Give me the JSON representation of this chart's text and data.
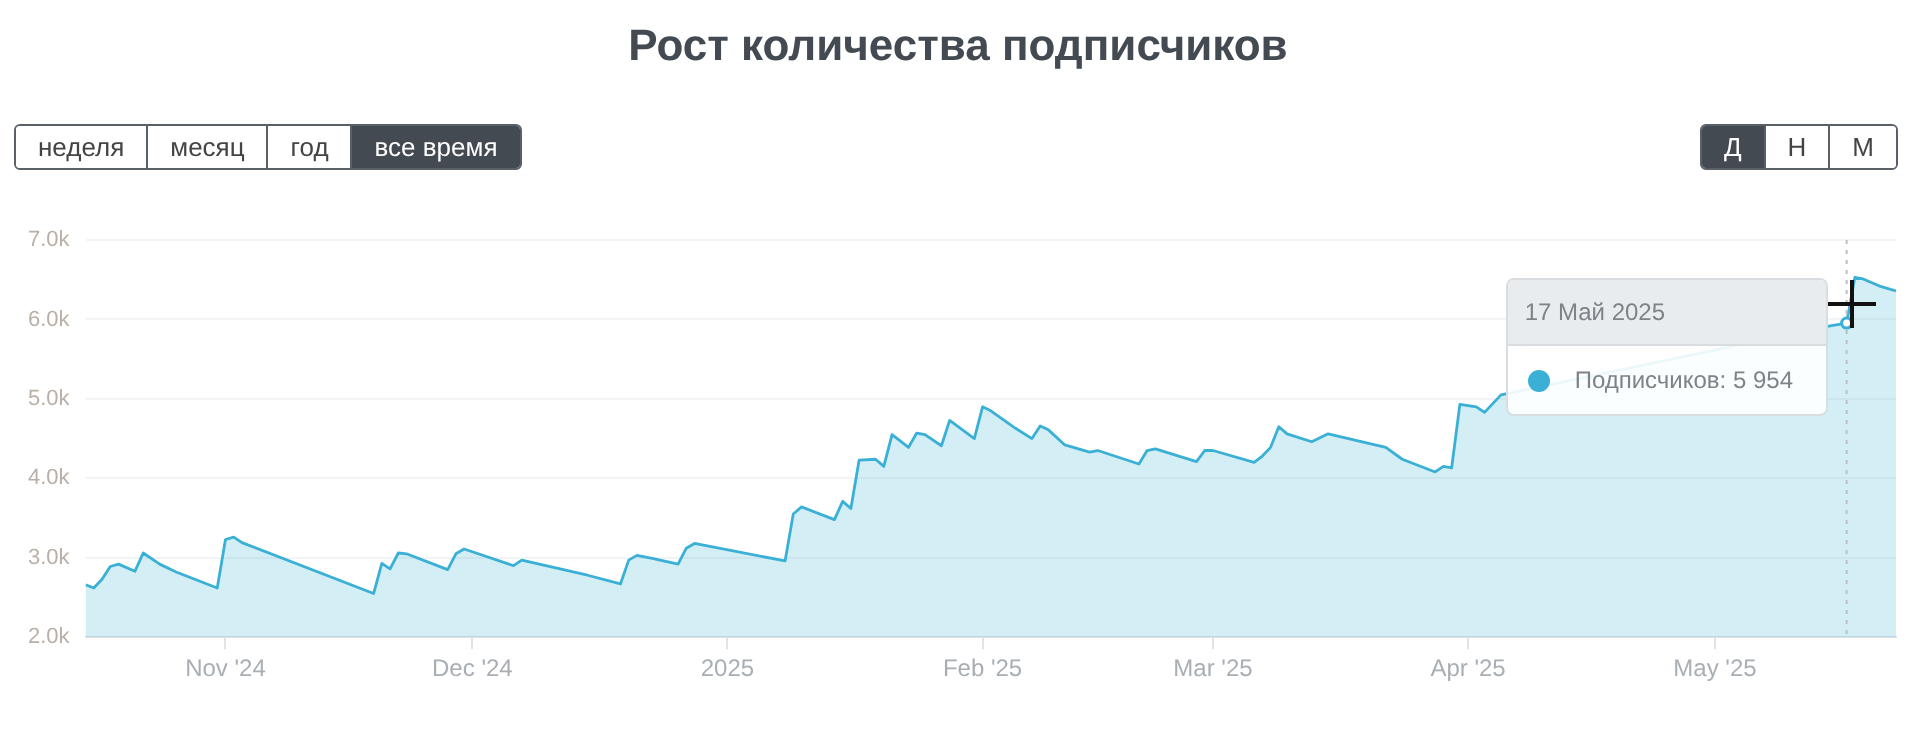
{
  "chart_data": {
    "type": "area",
    "title": "Рост количества подписчиков",
    "x": [
      "2024-10-15",
      "2024-10-16",
      "2024-10-17",
      "2024-10-18",
      "2024-10-19",
      "2024-10-21",
      "2024-10-22",
      "2024-10-24",
      "2024-10-26",
      "2024-10-31",
      "2024-11-01",
      "2024-11-02",
      "2024-11-03",
      "2024-11-19",
      "2024-11-20",
      "2024-11-21",
      "2024-11-22",
      "2024-11-23",
      "2024-11-28",
      "2024-11-29",
      "2024-11-30",
      "2024-12-06",
      "2024-12-07",
      "2024-12-15",
      "2024-12-19",
      "2024-12-20",
      "2024-12-21",
      "2024-12-23",
      "2024-12-26",
      "2024-12-27",
      "2024-12-28",
      "2025-01-08",
      "2025-01-09",
      "2025-01-10",
      "2025-01-14",
      "2025-01-15",
      "2025-01-16",
      "2025-01-17",
      "2025-01-19",
      "2025-01-20",
      "2025-01-21",
      "2025-01-23",
      "2025-01-24",
      "2025-01-25",
      "2025-01-27",
      "2025-01-28",
      "2025-01-31",
      "2025-02-01",
      "2025-02-02",
      "2025-02-05",
      "2025-02-07",
      "2025-02-08",
      "2025-02-09",
      "2025-02-11",
      "2025-02-14",
      "2025-02-15",
      "2025-02-20",
      "2025-02-21",
      "2025-02-22",
      "2025-02-27",
      "2025-02-28",
      "2025-03-01",
      "2025-03-06",
      "2025-03-07",
      "2025-03-08",
      "2025-03-09",
      "2025-03-10",
      "2025-03-13",
      "2025-03-15",
      "2025-03-22",
      "2025-03-24",
      "2025-03-28",
      "2025-03-29",
      "2025-03-30",
      "2025-03-31",
      "2025-04-02",
      "2025-04-03",
      "2025-04-05",
      "2025-04-10",
      "2025-04-12",
      "2025-04-23",
      "2025-04-24",
      "2025-05-03",
      "2025-05-09",
      "2025-05-14",
      "2025-05-15",
      "2025-05-17",
      "2025-05-18",
      "2025-05-19",
      "2025-05-21",
      "2025-05-23"
    ],
    "series": [
      {
        "color": "#3bb0d6",
        "values": [
          2660,
          2620,
          2730,
          2890,
          2920,
          2830,
          3060,
          2920,
          2820,
          2620,
          3230,
          3260,
          3190,
          2550,
          2930,
          2860,
          3060,
          3050,
          2850,
          3050,
          3110,
          2900,
          2970,
          2780,
          2670,
          2970,
          3030,
          2990,
          2920,
          3120,
          3180,
          2960,
          3550,
          3640,
          3480,
          3710,
          3620,
          4230,
          4240,
          4150,
          4550,
          4390,
          4570,
          4550,
          4410,
          4730,
          4500,
          4900,
          4850,
          4630,
          4500,
          4660,
          4610,
          4420,
          4330,
          4350,
          4180,
          4350,
          4370,
          4210,
          4350,
          4350,
          4200,
          4280,
          4390,
          4650,
          4560,
          4460,
          4560,
          4390,
          4240,
          4080,
          4150,
          4130,
          4930,
          4900,
          4830,
          5050,
          null,
          null,
          null,
          null,
          null,
          null,
          null,
          5920,
          5954,
          6530,
          6510,
          6420,
          6360
        ]
      }
    ],
    "xlim": [
      "2024-10-15",
      "2025-05-23"
    ],
    "xticks": [
      {
        "value": "2024-11-01",
        "label": "Nov '24"
      },
      {
        "value": "2024-12-01",
        "label": "Dec '24"
      },
      {
        "value": "2025-01-01",
        "label": "2025"
      },
      {
        "value": "2025-02-01",
        "label": "Feb '25"
      },
      {
        "value": "2025-03-01",
        "label": "Mar '25"
      },
      {
        "value": "2025-04-01",
        "label": "Apr '25"
      },
      {
        "value": "2025-05-01",
        "label": "May '25"
      }
    ],
    "ylim": [
      2000,
      7000
    ],
    "yticks": [
      {
        "value": 2000,
        "label": "2.0k"
      },
      {
        "value": 3000,
        "label": "3.0k"
      },
      {
        "value": 4000,
        "label": "4.0k"
      },
      {
        "value": 5000,
        "label": "5.0k"
      },
      {
        "value": 6000,
        "label": "6.0k"
      },
      {
        "value": 7000,
        "label": "7.0k"
      }
    ],
    "ref_lines": [
      {
        "axis": "x",
        "value": "2025-05-17",
        "color": "#b8bec4",
        "line_style": "dotted"
      }
    ],
    "annotations": [
      "неделя",
      "месяц",
      "год",
      "все время",
      "Д",
      "Н",
      "М",
      "17 Май 2025",
      "Подписчиков: 5 954"
    ],
    "grid": "y",
    "legend": false,
    "marker": "none"
  }
}
